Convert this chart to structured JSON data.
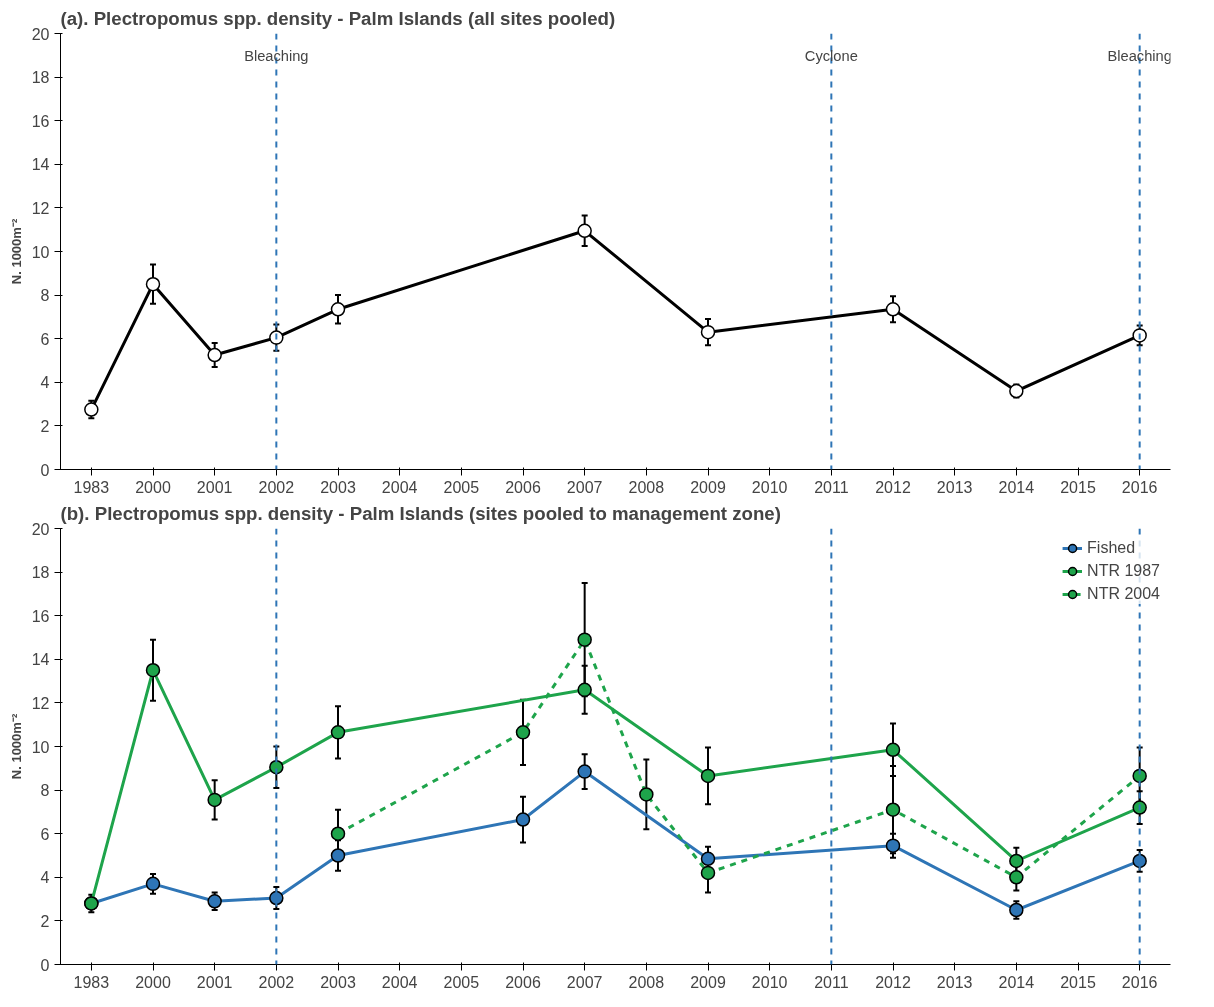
{
  "chart_data": [
    {
      "type": "line",
      "title": "(a). Plectropomus spp. density - Palm Islands (all sites pooled)",
      "ylabel": "N. 1000m⁻²",
      "categories": [
        "1983",
        "2000",
        "2001",
        "2002",
        "2003",
        "2004",
        "2005",
        "2006",
        "2007",
        "2008",
        "2009",
        "2010",
        "2011",
        "2012",
        "2013",
        "2014",
        "2015",
        "2016"
      ],
      "series": [
        {
          "color": "#000000",
          "line_style": "solid",
          "values": [
            2.75,
            8.5,
            5.25,
            6.05,
            7.35,
            null,
            null,
            null,
            10.95,
            null,
            6.3,
            null,
            null,
            7.35,
            null,
            3.6,
            null,
            6.15
          ],
          "errors": [
            0.4,
            0.9,
            0.55,
            0.6,
            0.65,
            null,
            null,
            null,
            0.7,
            null,
            0.6,
            null,
            null,
            0.6,
            null,
            0.3,
            null,
            0.45
          ]
        }
      ],
      "marker": "circle",
      "ylim": [
        0,
        20
      ],
      "yticks": [
        0,
        2,
        4,
        6,
        8,
        10,
        12,
        14,
        16,
        18,
        20
      ],
      "grid": false,
      "legend": false,
      "ref_lines": [
        {
          "axis": "x",
          "value": "2002",
          "label": "Bleaching",
          "color": "#2e75b6",
          "line_style": "dashed"
        },
        {
          "axis": "x",
          "value": "2011",
          "label": "Cyclone",
          "color": "#2e75b6",
          "line_style": "dashed"
        },
        {
          "axis": "x",
          "value": "2016",
          "label": "Bleaching",
          "color": "#2e75b6",
          "line_style": "dashed"
        }
      ]
    },
    {
      "type": "line",
      "title": "(b). Plectropomus spp. density - Palm Islands (sites pooled to management zone)",
      "ylabel": "N. 1000m⁻²",
      "categories": [
        "1983",
        "2000",
        "2001",
        "2002",
        "2003",
        "2004",
        "2005",
        "2006",
        "2007",
        "2008",
        "2009",
        "2010",
        "2011",
        "2012",
        "2013",
        "2014",
        "2015",
        "2016"
      ],
      "series": [
        {
          "name": "Fished",
          "color": "#2e75b6",
          "line_style": "solid",
          "values": [
            2.8,
            3.7,
            2.9,
            3.05,
            5.0,
            null,
            null,
            6.65,
            8.85,
            null,
            4.85,
            null,
            null,
            5.45,
            null,
            2.5,
            null,
            4.75
          ],
          "errors": [
            0.4,
            0.45,
            0.4,
            0.5,
            0.7,
            null,
            null,
            1.05,
            0.8,
            null,
            0.55,
            null,
            null,
            0.55,
            null,
            0.4,
            null,
            0.5
          ]
        },
        {
          "name": "NTR 1987",
          "color": "#1ea44b",
          "line_style": "solid",
          "values": [
            2.8,
            13.5,
            7.55,
            9.05,
            10.65,
            null,
            null,
            null,
            12.6,
            null,
            8.65,
            null,
            null,
            9.85,
            null,
            4.75,
            null,
            7.2
          ],
          "errors": [
            null,
            1.4,
            0.9,
            0.95,
            1.2,
            null,
            null,
            null,
            1.1,
            null,
            1.3,
            null,
            null,
            1.2,
            null,
            0.6,
            null,
            0.75
          ]
        },
        {
          "name": "NTR 2004",
          "color": "#1ea44b",
          "line_style": "dashed",
          "values": [
            null,
            null,
            null,
            null,
            6.0,
            null,
            null,
            10.65,
            14.9,
            7.8,
            4.2,
            null,
            null,
            7.1,
            null,
            4.0,
            null,
            8.65
          ],
          "errors": [
            null,
            null,
            null,
            null,
            1.1,
            null,
            null,
            1.5,
            2.6,
            1.6,
            0.9,
            null,
            null,
            2.0,
            null,
            0.6,
            null,
            1.3
          ]
        }
      ],
      "marker": "circle",
      "ylim": [
        0,
        20
      ],
      "yticks": [
        0,
        2,
        4,
        6,
        8,
        10,
        12,
        14,
        16,
        18,
        20
      ],
      "grid": false,
      "legend": "top right",
      "ref_lines": [
        {
          "axis": "x",
          "value": "2002",
          "color": "#2e75b6",
          "line_style": "dashed"
        },
        {
          "axis": "x",
          "value": "2011",
          "color": "#2e75b6",
          "line_style": "dashed"
        },
        {
          "axis": "x",
          "value": "2016",
          "color": "#2e75b6",
          "line_style": "dashed"
        }
      ]
    }
  ]
}
